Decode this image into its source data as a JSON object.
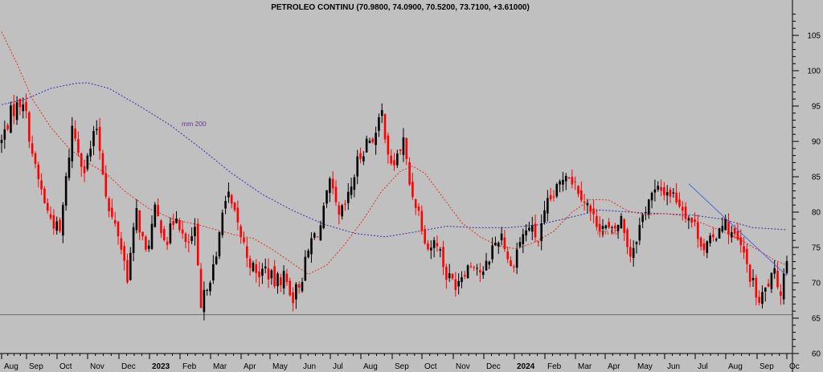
{
  "chart_data": {
    "type": "candlestick",
    "title": "PETROLEO CONTINU (70.9800, 74.0900, 70.5200, 73.7100, +3.61000)",
    "ylim": [
      60,
      108
    ],
    "grid": false,
    "colors": {
      "background": "#c0c0c0",
      "candle_up": "#000000",
      "candle_down": "#ff0000",
      "ma_short": "#e03020",
      "ma_long": "#3333aa",
      "trendline": "#5566dd",
      "support": "#707070"
    },
    "y_ticks": [
      "60",
      "65",
      "70",
      "75",
      "80",
      "85",
      "90",
      "95",
      "100",
      "105"
    ],
    "x_ticks": [
      "Aug",
      "Sep",
      "Oct",
      "Nov",
      "Dec",
      "2023",
      "Feb",
      "Mar",
      "Apr",
      "May",
      "Jun",
      "Jul",
      "Aug",
      "Sep",
      "Oct",
      "Nov",
      "Dec",
      "2024",
      "Feb",
      "Mar",
      "Apr",
      "May",
      "Jun",
      "Jul",
      "Aug",
      "Sep",
      "Oc"
    ],
    "price_path": [
      {
        "t": 0,
        "v": 90
      },
      {
        "t": 3,
        "v": 94
      },
      {
        "t": 7,
        "v": 96
      },
      {
        "t": 11,
        "v": 86
      },
      {
        "t": 15,
        "v": 80
      },
      {
        "t": 19,
        "v": 77
      },
      {
        "t": 23,
        "v": 92
      },
      {
        "t": 27,
        "v": 86
      },
      {
        "t": 31,
        "v": 92
      },
      {
        "t": 35,
        "v": 80
      },
      {
        "t": 38,
        "v": 77
      },
      {
        "t": 41,
        "v": 71
      },
      {
        "t": 44,
        "v": 80
      },
      {
        "t": 47,
        "v": 74
      },
      {
        "t": 50,
        "v": 80
      },
      {
        "t": 54,
        "v": 76
      },
      {
        "t": 57,
        "v": 80
      },
      {
        "t": 60,
        "v": 75
      },
      {
        "t": 63,
        "v": 77
      },
      {
        "t": 65,
        "v": 66
      },
      {
        "t": 67,
        "v": 70
      },
      {
        "t": 70,
        "v": 73
      },
      {
        "t": 72,
        "v": 81
      },
      {
        "t": 74,
        "v": 82
      },
      {
        "t": 77,
        "v": 78
      },
      {
        "t": 80,
        "v": 74
      },
      {
        "t": 83,
        "v": 71
      },
      {
        "t": 86,
        "v": 72
      },
      {
        "t": 89,
        "v": 70
      },
      {
        "t": 92,
        "v": 71
      },
      {
        "t": 95,
        "v": 68
      },
      {
        "t": 98,
        "v": 71
      },
      {
        "t": 101,
        "v": 76
      },
      {
        "t": 104,
        "v": 78
      },
      {
        "t": 107,
        "v": 84
      },
      {
        "t": 110,
        "v": 79
      },
      {
        "t": 113,
        "v": 82
      },
      {
        "t": 116,
        "v": 87
      },
      {
        "t": 119,
        "v": 90
      },
      {
        "t": 122,
        "v": 91
      },
      {
        "t": 124,
        "v": 94
      },
      {
        "t": 127,
        "v": 86
      },
      {
        "t": 129,
        "v": 88
      },
      {
        "t": 131,
        "v": 90
      },
      {
        "t": 133,
        "v": 84
      },
      {
        "t": 136,
        "v": 80
      },
      {
        "t": 139,
        "v": 75
      },
      {
        "t": 142,
        "v": 76
      },
      {
        "t": 145,
        "v": 71
      },
      {
        "t": 148,
        "v": 70
      },
      {
        "t": 151,
        "v": 72
      },
      {
        "t": 154,
        "v": 73
      },
      {
        "t": 157,
        "v": 71
      },
      {
        "t": 160,
        "v": 75
      },
      {
        "t": 163,
        "v": 77
      },
      {
        "t": 166,
        "v": 72
      },
      {
        "t": 169,
        "v": 76
      },
      {
        "t": 172,
        "v": 78
      },
      {
        "t": 175,
        "v": 76
      },
      {
        "t": 178,
        "v": 81
      },
      {
        "t": 181,
        "v": 83
      },
      {
        "t": 184,
        "v": 86
      },
      {
        "t": 187,
        "v": 84
      },
      {
        "t": 190,
        "v": 82
      },
      {
        "t": 193,
        "v": 79
      },
      {
        "t": 196,
        "v": 78
      },
      {
        "t": 199,
        "v": 77
      },
      {
        "t": 202,
        "v": 79
      },
      {
        "t": 205,
        "v": 74
      },
      {
        "t": 208,
        "v": 78
      },
      {
        "t": 211,
        "v": 82
      },
      {
        "t": 214,
        "v": 83
      },
      {
        "t": 217,
        "v": 83
      },
      {
        "t": 220,
        "v": 82
      },
      {
        "t": 223,
        "v": 80
      },
      {
        "t": 226,
        "v": 78
      },
      {
        "t": 229,
        "v": 75
      },
      {
        "t": 232,
        "v": 76
      },
      {
        "t": 235,
        "v": 79
      },
      {
        "t": 238,
        "v": 77
      },
      {
        "t": 241,
        "v": 75
      },
      {
        "t": 244,
        "v": 71
      },
      {
        "t": 247,
        "v": 67
      },
      {
        "t": 250,
        "v": 70
      },
      {
        "t": 252,
        "v": 71
      },
      {
        "t": 254,
        "v": 69
      },
      {
        "t": 256,
        "v": 73.71
      }
    ],
    "ma200": [
      {
        "t": 0,
        "v": 95.2
      },
      {
        "t": 8,
        "v": 96
      },
      {
        "t": 16,
        "v": 97.5
      },
      {
        "t": 24,
        "v": 98.2
      },
      {
        "t": 28,
        "v": 98.3
      },
      {
        "t": 35,
        "v": 97.5
      },
      {
        "t": 45,
        "v": 95
      },
      {
        "t": 55,
        "v": 92.3
      },
      {
        "t": 65,
        "v": 89
      },
      {
        "t": 75,
        "v": 85.5
      },
      {
        "t": 85,
        "v": 82.5
      },
      {
        "t": 95,
        "v": 80.2
      },
      {
        "t": 105,
        "v": 78.3
      },
      {
        "t": 115,
        "v": 77
      },
      {
        "t": 125,
        "v": 76.5
      },
      {
        "t": 135,
        "v": 77.2
      },
      {
        "t": 145,
        "v": 78
      },
      {
        "t": 155,
        "v": 77.8
      },
      {
        "t": 165,
        "v": 77.8
      },
      {
        "t": 175,
        "v": 78.2
      },
      {
        "t": 185,
        "v": 79.2
      },
      {
        "t": 195,
        "v": 80.3
      },
      {
        "t": 205,
        "v": 80
      },
      {
        "t": 215,
        "v": 79.8
      },
      {
        "t": 225,
        "v": 79.6
      },
      {
        "t": 235,
        "v": 79
      },
      {
        "t": 245,
        "v": 77.8
      },
      {
        "t": 256,
        "v": 77.5
      }
    ],
    "ma50": [
      {
        "t": 0,
        "v": 105.5
      },
      {
        "t": 5,
        "v": 101
      },
      {
        "t": 10,
        "v": 96
      },
      {
        "t": 16,
        "v": 92
      },
      {
        "t": 22,
        "v": 89
      },
      {
        "t": 28,
        "v": 87
      },
      {
        "t": 34,
        "v": 85.5
      },
      {
        "t": 40,
        "v": 83
      },
      {
        "t": 48,
        "v": 80.5
      },
      {
        "t": 56,
        "v": 79
      },
      {
        "t": 64,
        "v": 78.2
      },
      {
        "t": 70,
        "v": 77.5
      },
      {
        "t": 76,
        "v": 76.8
      },
      {
        "t": 82,
        "v": 76.3
      },
      {
        "t": 88,
        "v": 74.8
      },
      {
        "t": 94,
        "v": 73
      },
      {
        "t": 100,
        "v": 71.2
      },
      {
        "t": 106,
        "v": 72.5
      },
      {
        "t": 112,
        "v": 75.5
      },
      {
        "t": 118,
        "v": 79
      },
      {
        "t": 124,
        "v": 83
      },
      {
        "t": 130,
        "v": 85.8
      },
      {
        "t": 134,
        "v": 86.5
      },
      {
        "t": 138,
        "v": 85.5
      },
      {
        "t": 144,
        "v": 82
      },
      {
        "t": 150,
        "v": 78.5
      },
      {
        "t": 156,
        "v": 76.5
      },
      {
        "t": 162,
        "v": 75.2
      },
      {
        "t": 168,
        "v": 74.8
      },
      {
        "t": 174,
        "v": 75.8
      },
      {
        "t": 180,
        "v": 77.3
      },
      {
        "t": 186,
        "v": 80
      },
      {
        "t": 192,
        "v": 81.8
      },
      {
        "t": 198,
        "v": 81.7
      },
      {
        "t": 204,
        "v": 80.2
      },
      {
        "t": 210,
        "v": 79.6
      },
      {
        "t": 216,
        "v": 79.8
      },
      {
        "t": 222,
        "v": 79.5
      },
      {
        "t": 228,
        "v": 78.5
      },
      {
        "t": 234,
        "v": 77.5
      },
      {
        "t": 240,
        "v": 76.3
      },
      {
        "t": 246,
        "v": 74.8
      },
      {
        "t": 252,
        "v": 73.2
      },
      {
        "t": 256,
        "v": 72.5
      }
    ],
    "trendline": {
      "from": {
        "t": 224,
        "v": 84
      },
      "to": {
        "t": 256,
        "v": 71
      }
    },
    "support_level": 65.5,
    "annotations": [
      {
        "text": "mm 200",
        "series": "ma_long"
      },
      {
        "text": "mm 50",
        "series": "ma_short"
      }
    ]
  }
}
